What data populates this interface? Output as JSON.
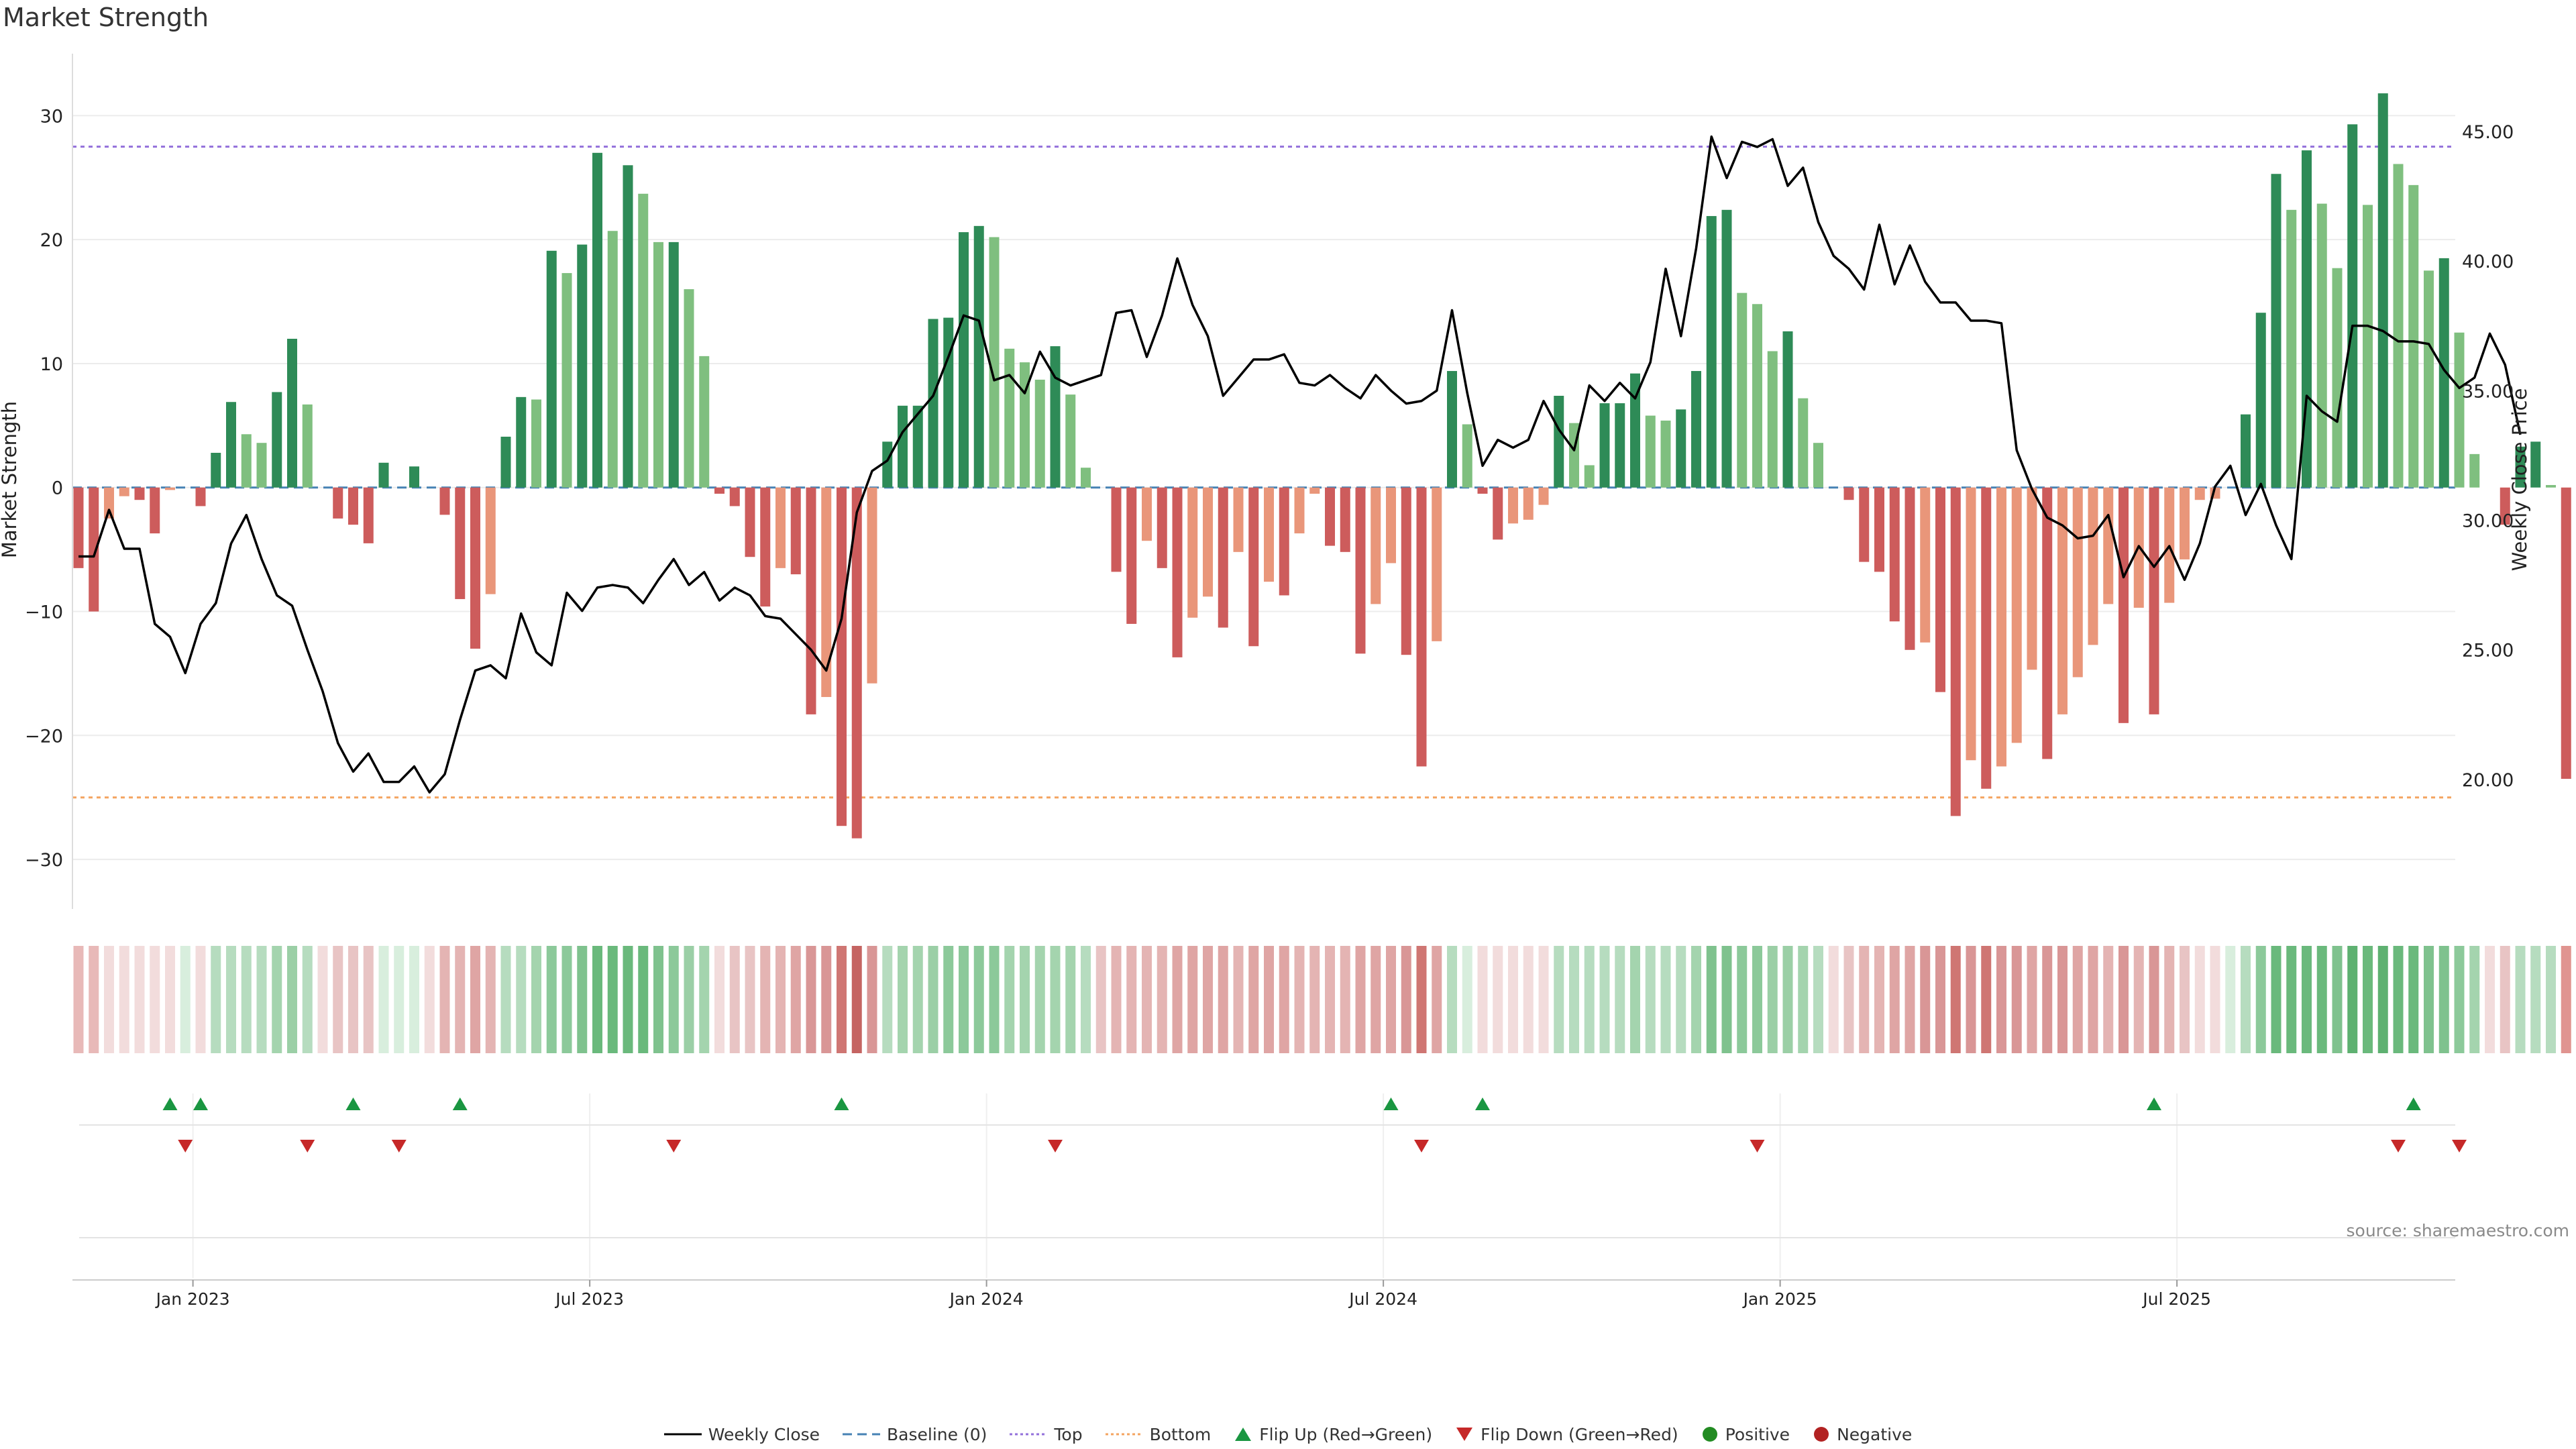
{
  "chart_data": {
    "type": "bar",
    "title": "Market Strength",
    "ylabel_left": "Market Strength",
    "ylabel_right": "Weekly Close Price",
    "ylim_left": [
      -34,
      35
    ],
    "ylim_right": [
      15.0,
      48.0
    ],
    "yticks_left": [
      30,
      20,
      10,
      0,
      -10,
      -20,
      -30
    ],
    "ytick_labels_left": [
      "30",
      "20",
      "10",
      "0",
      "−10",
      "−20",
      "−30"
    ],
    "yticks_right": [
      45.0,
      40.0,
      35.0,
      30.0,
      25.0,
      20.0
    ],
    "ytick_labels_right": [
      "45.00",
      "40.00",
      "35.00",
      "30.00",
      "25.00",
      "20.00"
    ],
    "xtick_weeks": [
      7.5,
      33.5,
      59.5,
      85.5,
      111.5,
      137.5
    ],
    "xtick_labels": [
      "Jan 2023",
      "Jul 2023",
      "Jan 2024",
      "Jul 2024",
      "Jan 2025",
      "Jul 2025"
    ],
    "top_line": 27.5,
    "bottom_line": -25,
    "baseline": 0,
    "strength": [
      -6.5,
      -10,
      -2.5,
      -0.7,
      -1,
      -3.7,
      -0.2,
      0,
      -1.5,
      2.8,
      6.9,
      4.3,
      3.6,
      7.7,
      12,
      6.7,
      0,
      -2.5,
      -3,
      -4.5,
      2,
      0,
      1.7,
      0,
      -2.2,
      -9,
      -13,
      -8.6,
      4.1,
      7.3,
      7.1,
      19.1,
      17.3,
      19.6,
      27,
      20.7,
      26,
      23.7,
      19.8,
      19.8,
      16,
      10.6,
      -0.5,
      -1.5,
      -5.6,
      -9.6,
      -6.5,
      -7,
      -18.3,
      -16.9,
      -27.3,
      -28.3,
      -15.8,
      3.7,
      6.6,
      6.6,
      13.6,
      13.7,
      20.6,
      21.1,
      20.2,
      11.2,
      10.1,
      8.7,
      11.4,
      7.5,
      1.6,
      0,
      -6.8,
      -11,
      -4.3,
      -6.5,
      -13.7,
      -10.5,
      -8.8,
      -11.3,
      -5.2,
      -12.8,
      -7.6,
      -8.7,
      -3.7,
      -0.5,
      -4.7,
      -5.2,
      -13.4,
      -9.4,
      -6.1,
      -13.5,
      -22.5,
      -12.4,
      9.4,
      5.1,
      -0.5,
      -4.2,
      -2.9,
      -2.6,
      -1.4,
      7.4,
      5.2,
      1.8,
      6.8,
      6.8,
      9.2,
      5.8,
      5.4,
      6.3,
      9.4,
      21.9,
      22.4,
      15.7,
      14.8,
      11,
      12.6,
      7.2,
      3.6,
      0,
      -1,
      -6,
      -6.8,
      -10.8,
      -13.1,
      -12.5,
      -16.5,
      -26.5,
      -22,
      -24.3,
      -22.5,
      -20.6,
      -14.7,
      -21.9,
      -18.3,
      -15.3,
      -12.7,
      -9.4,
      -19,
      -9.7,
      -18.3,
      -9.3,
      -5.8,
      -1,
      -0.9,
      0,
      5.9,
      14.1,
      25.3,
      22.4,
      27.2,
      22.9,
      17.7,
      29.3,
      22.8,
      31.8,
      26.1,
      24.4,
      17.5,
      18.5,
      12.5,
      2.7,
      0,
      -3,
      3.3,
      3.7,
      0.2,
      -23.5
    ],
    "weekly_close": [
      28.6,
      28.6,
      30.4,
      28.9,
      28.9,
      26,
      25.5,
      24.1,
      26,
      26.8,
      29.1,
      30.2,
      28.5,
      27.1,
      26.7,
      25,
      23.4,
      21.4,
      20.3,
      21,
      19.9,
      19.9,
      20.5,
      19.5,
      20.2,
      22.3,
      24.2,
      24.4,
      23.9,
      26.4,
      24.9,
      24.4,
      27.2,
      26.5,
      27.4,
      27.5,
      27.4,
      26.8,
      27.7,
      28.5,
      27.5,
      28,
      26.9,
      27.4,
      27.1,
      26.3,
      26.2,
      25.6,
      25,
      24.2,
      26.2,
      30.3,
      31.9,
      32.3,
      33.4,
      34.1,
      34.8,
      36.3,
      37.9,
      37.7,
      35.4,
      35.6,
      34.9,
      36.5,
      35.5,
      35.2,
      35.4,
      35.6,
      38,
      38.1,
      36.3,
      37.9,
      40.1,
      38.3,
      37.1,
      34.8,
      35.5,
      36.2,
      36.2,
      36.4,
      35.3,
      35.2,
      35.6,
      35.1,
      34.7,
      35.6,
      35,
      34.5,
      34.6,
      35,
      38.1,
      34.9,
      32.1,
      33.1,
      32.8,
      33.1,
      34.6,
      33.5,
      32.7,
      35.2,
      34.6,
      35.3,
      34.7,
      36.1,
      39.7,
      37.1,
      40.5,
      44.8,
      43.2,
      44.6,
      44.4,
      44.7,
      42.9,
      43.6,
      41.5,
      40.2,
      39.7,
      38.9,
      41.4,
      39.1,
      40.6,
      39.2,
      38.4,
      38.4,
      37.7,
      37.7,
      37.6,
      32.7,
      31.2,
      30.1,
      29.8,
      29.3,
      29.4,
      30.2,
      27.8,
      29,
      28.2,
      29,
      27.7,
      29.1,
      31.3,
      32.1,
      30.2,
      31.4,
      29.8,
      28.5,
      34.8,
      34.2,
      33.8,
      37.5,
      37.5,
      37.3,
      36.9,
      36.9,
      36.8,
      35.8,
      35.1,
      35.5,
      37.2,
      36,
      33.3
    ],
    "band_colors": [
      "#e8b9b8",
      "#e8b9b8",
      "#f2dcdc",
      "#f2dcdc",
      "#f2dcdc",
      "#f2dcdc",
      "#f2dcdc",
      "#d8eedd",
      "#f2dcdc",
      "#b6dcbf",
      "#b6dcbf",
      "#b6dcbf",
      "#b6dcbf",
      "#a4d4ae",
      "#9bcfa6",
      "#b6dcbf",
      "#f2dcdc",
      "#e8c4c4",
      "#e8c4c4",
      "#e8c4c4",
      "#d8eedd",
      "#d8eedd",
      "#d8eedd",
      "#f2dcdc",
      "#e4b4b3",
      "#e4b4b3",
      "#dfa5a4",
      "#e4b4b3",
      "#b6dcbf",
      "#b6dcbf",
      "#a4d4ae",
      "#8cc99a",
      "#8cc99a",
      "#7fc28e",
      "#6ab97c",
      "#6ab97c",
      "#6ab97c",
      "#6ab97c",
      "#7fc28e",
      "#8cc99a",
      "#9bcfa6",
      "#a4d4ae",
      "#f2dcdc",
      "#e8c4c4",
      "#e8c4c4",
      "#e4b4b3",
      "#e4b4b3",
      "#dfa5a4",
      "#d99696",
      "#d99696",
      "#cf7673",
      "#c56462",
      "#d99696",
      "#b6dcbf",
      "#a4d4ae",
      "#a4d4ae",
      "#9bcfa6",
      "#8cc99a",
      "#8cc99a",
      "#8cc99a",
      "#8cc99a",
      "#a4d4ae",
      "#a4d4ae",
      "#a4d4ae",
      "#a4d4ae",
      "#a4d4ae",
      "#b6dcbf",
      "#e8c4c4",
      "#e4b4b3",
      "#e4b4b3",
      "#e4b4b3",
      "#e4b4b3",
      "#dfa5a4",
      "#dfa5a4",
      "#dfa5a4",
      "#dfa5a4",
      "#e4b4b3",
      "#dfa5a4",
      "#dfa5a4",
      "#dfa5a4",
      "#e4b4b3",
      "#e4b4b3",
      "#e4b4b3",
      "#e4b4b3",
      "#dfa5a4",
      "#dfa5a4",
      "#dfa5a4",
      "#d99696",
      "#cf7673",
      "#dfa5a4",
      "#b6dcbf",
      "#d8eedd",
      "#f2dcdc",
      "#f2dcdc",
      "#f2dcdc",
      "#f2dcdc",
      "#f2dcdc",
      "#b6dcbf",
      "#b6dcbf",
      "#b6dcbf",
      "#b6dcbf",
      "#b6dcbf",
      "#a4d4ae",
      "#b6dcbf",
      "#b6dcbf",
      "#b6dcbf",
      "#a4d4ae",
      "#7fc28e",
      "#7fc28e",
      "#8cc99a",
      "#8cc99a",
      "#9bcfa6",
      "#9bcfa6",
      "#a4d4ae",
      "#b6dcbf",
      "#f2dcdc",
      "#e8c4c4",
      "#e4b4b3",
      "#e4b4b3",
      "#dfa5a4",
      "#dfa5a4",
      "#d99696",
      "#d99696",
      "#cf7673",
      "#d99696",
      "#cf7673",
      "#d99696",
      "#d99696",
      "#dfa5a4",
      "#d99696",
      "#d99696",
      "#dfa5a4",
      "#dfa5a4",
      "#e4b4b3",
      "#d99696",
      "#e4b4b3",
      "#d99696",
      "#e4b4b3",
      "#e8c4c4",
      "#f2dcdc",
      "#f2dcdc",
      "#d8eedd",
      "#b6dcbf",
      "#8cc99a",
      "#6ab97c",
      "#6ab97c",
      "#6ab97c",
      "#6ab97c",
      "#7fc28e",
      "#5eb171",
      "#6ab97c",
      "#5eb171",
      "#6ab97c",
      "#6ab97c",
      "#7fc28e",
      "#7fc28e",
      "#8cc99a",
      "#a4d4ae",
      "#f2dcdc",
      "#e8c4c4",
      "#b6dcbf",
      "#b6dcbf",
      "#b6dcbf",
      "#e09490"
    ],
    "flip_up_weeks": [
      6,
      8,
      18,
      25,
      50,
      86,
      92,
      136,
      153
    ],
    "flip_down_weeks": [
      7,
      15,
      21,
      39,
      64,
      88,
      110,
      152,
      156
    ],
    "legend": [
      "Weekly Close",
      "Baseline (0)",
      "Top",
      "Bottom",
      "Flip Up (Red→Green)",
      "Flip Down (Green→Red)",
      "Positive",
      "Negative"
    ]
  },
  "colors": {
    "pos_dark": "#2e8b57",
    "pos_light": "#7fbf7f",
    "neg_dark": "#cd5c5c",
    "neg_light": "#e9967a",
    "top_line": "#9370db",
    "bottom_line": "#f4a460",
    "baseline": "#4682b4",
    "close_line": "#000000",
    "flip_up": "#1a9641",
    "flip_down": "#c62828",
    "positive_dot": "#228b22",
    "negative_dot": "#b22222"
  },
  "source_note": "source: sharemaestro.com"
}
